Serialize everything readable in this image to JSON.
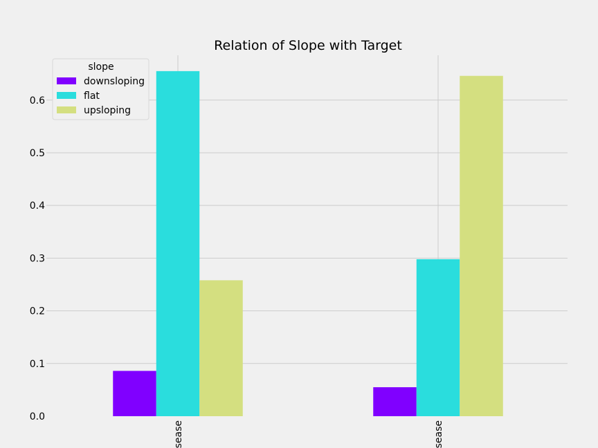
{
  "chart_data": {
    "type": "bar",
    "title": "Relation of Slope with Target",
    "xlabel": "",
    "ylabel": "",
    "categories": [
      "Heart Disease",
      "No Heart Disease"
    ],
    "category_labels_visible": [
      "sease",
      "sease"
    ],
    "series": [
      {
        "name": "downsloping",
        "color": "#8000ff",
        "values": [
          0.086,
          0.055
        ]
      },
      {
        "name": "flat",
        "color": "#2adddd",
        "values": [
          0.655,
          0.298
        ]
      },
      {
        "name": "upsloping",
        "color": "#d4df80",
        "values": [
          0.258,
          0.646
        ]
      }
    ],
    "ylim": [
      0,
      0.685
    ],
    "yticks": [
      0.0,
      0.1,
      0.2,
      0.3,
      0.4,
      0.5,
      0.6
    ],
    "ytick_labels": [
      "0.0",
      "0.1",
      "0.2",
      "0.3",
      "0.4",
      "0.5",
      "0.6"
    ],
    "grid": true,
    "legend": {
      "title": "slope",
      "placement": "top-left"
    },
    "colors": {
      "background": "#f0f0f0",
      "grid": "#cbcbcb"
    }
  }
}
